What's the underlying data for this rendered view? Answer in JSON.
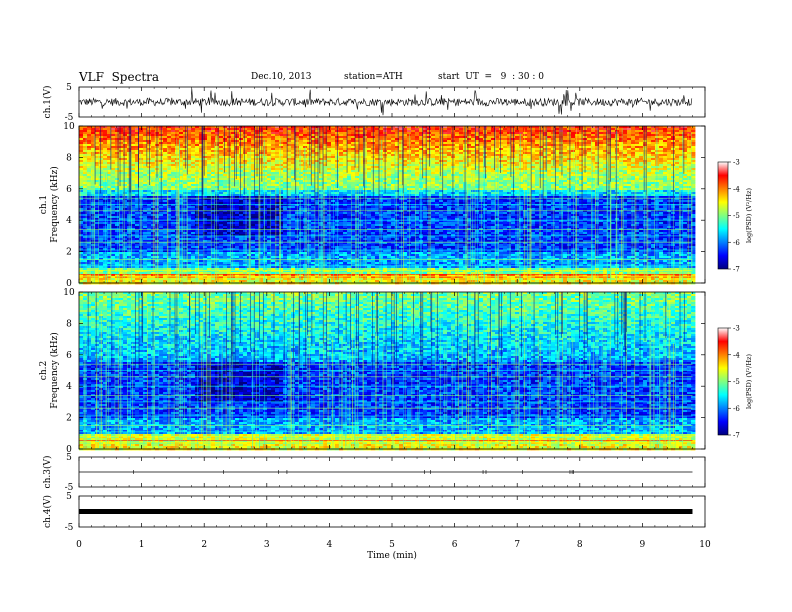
{
  "header": {
    "title": "VLF  Spectra",
    "date": "Dec.10, 2013",
    "station": "station=ATH",
    "start": "start  UT  =   9  : 30 : 0"
  },
  "chart_data": {
    "type": "heatmap",
    "xlabel": "Time  (min)",
    "xlim": [
      0,
      10
    ],
    "xticks": [
      "0",
      "1",
      "2",
      "3",
      "4",
      "5",
      "6",
      "7",
      "8",
      "9",
      "10"
    ],
    "data_end_min": 9.8,
    "panels": [
      {
        "kind": "waveform",
        "ylabel": "ch.1(V)",
        "yticks": [
          "5",
          "-5"
        ],
        "ylim": [
          -5,
          5
        ],
        "amplitude": "noisy"
      },
      {
        "kind": "spectrogram",
        "ylabel_ch": "ch.1",
        "ylabel": "Frequency  (kHz)",
        "ylim": [
          0,
          10
        ],
        "yticks": [
          "0",
          "2",
          "4",
          "6",
          "8",
          "10"
        ]
      },
      {
        "kind": "spectrogram",
        "ylabel_ch": "ch.2",
        "ylabel": "Frequency  (kHz)",
        "ylim": [
          0,
          10
        ],
        "yticks": [
          "0",
          "2",
          "4",
          "6",
          "8",
          "10"
        ]
      },
      {
        "kind": "waveform",
        "ylabel": "ch.3(V)",
        "yticks": [
          "5",
          "-5"
        ],
        "ylim": [
          -5,
          5
        ],
        "amplitude": "flat"
      },
      {
        "kind": "waveform",
        "ylabel": "ch.4(V)",
        "yticks": [
          "5",
          "-5"
        ],
        "ylim": [
          -5,
          5
        ],
        "amplitude": "thick"
      }
    ],
    "colorbar": {
      "label": "log(PSD) (V²/Hz)",
      "range": [
        -7,
        -3
      ],
      "ticks": [
        "-3",
        "-4",
        "-5",
        "-6",
        "-7"
      ],
      "colors": [
        "#00007f",
        "#0000ff",
        "#0080ff",
        "#00ffff",
        "#80ff80",
        "#ffff00",
        "#ff8000",
        "#ff0000",
        "#ffffff"
      ]
    }
  }
}
